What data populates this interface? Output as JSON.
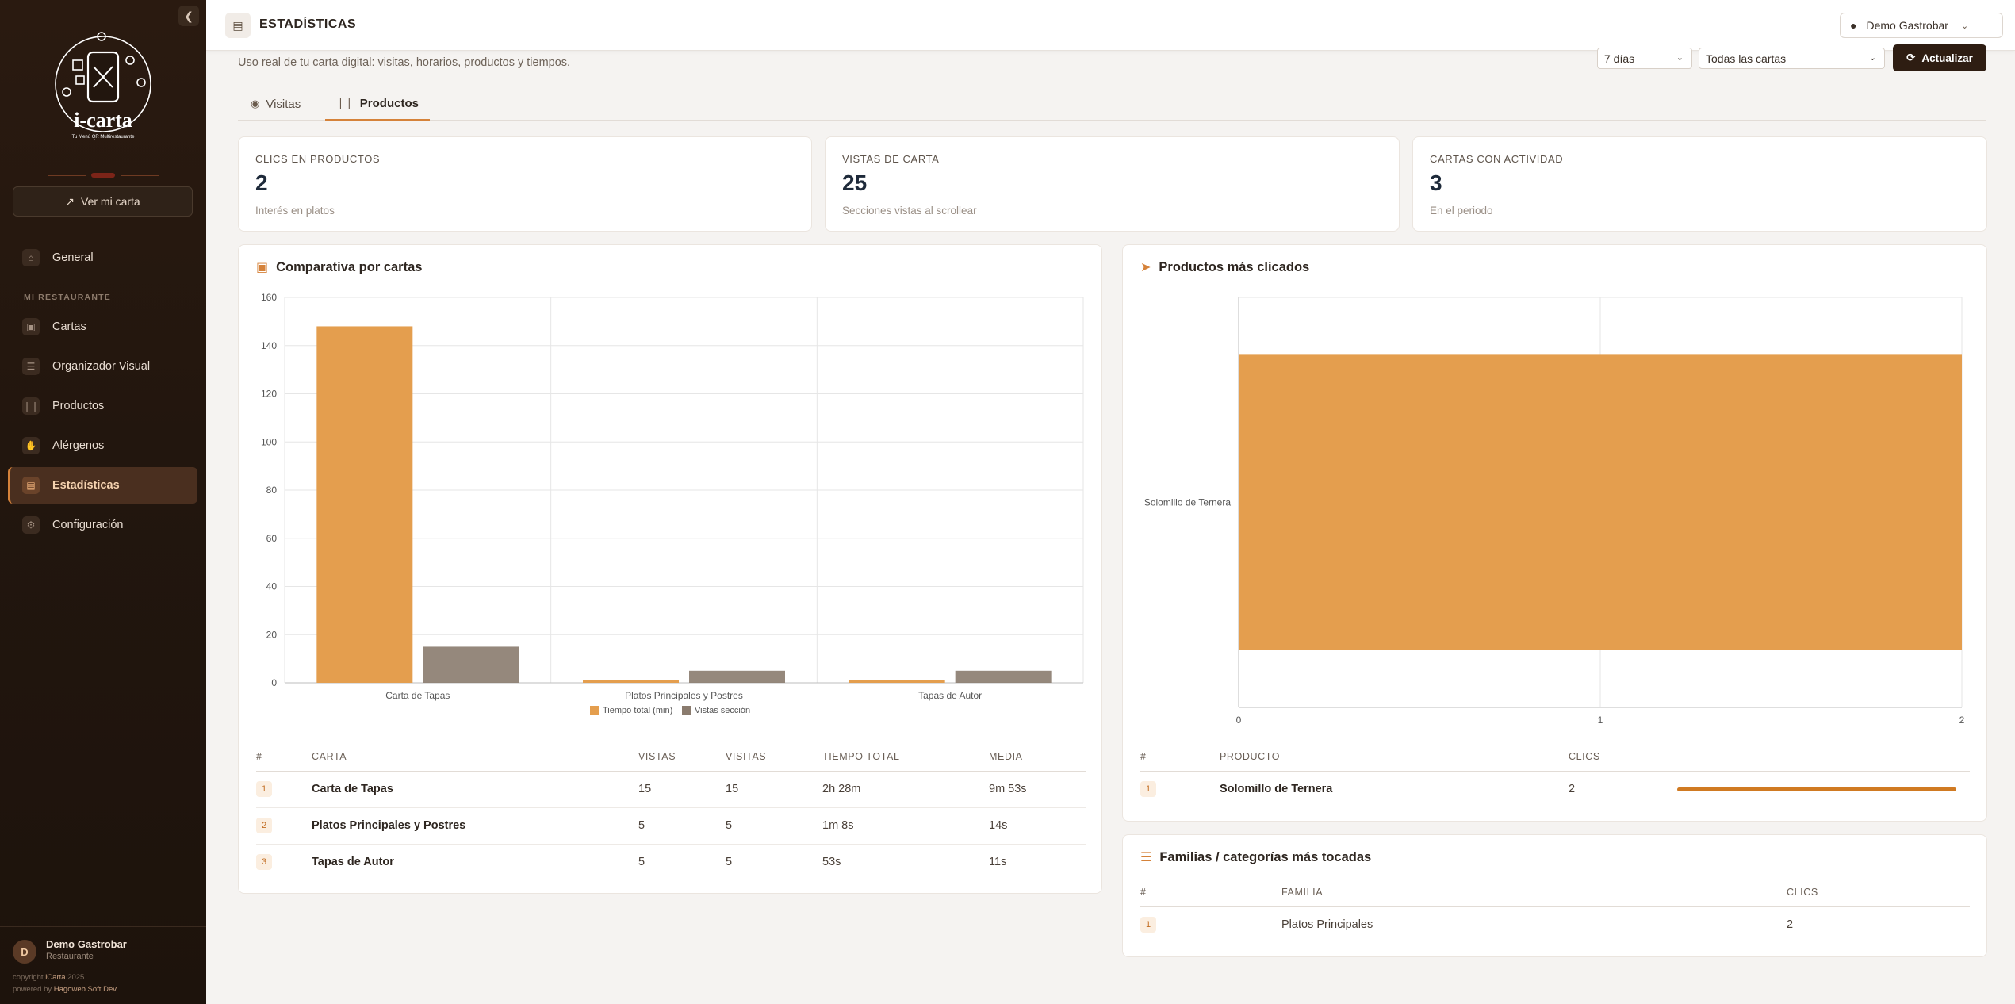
{
  "colors": {
    "accent": "#d5823a",
    "bar_primary": "#e49e4e",
    "bar_secondary": "#8a7b6e",
    "sidebar_bg": "#22160e",
    "button_dark": "#2e1d12"
  },
  "sidebar": {
    "logo_text": "i-carta",
    "logo_tagline": "Tu Menú QR Multirestaurante",
    "view_menu_label": "Ver mi carta",
    "view_menu_icon": "external-link-icon",
    "collapse_icon": "chevron-left-icon",
    "items_top": [
      {
        "label": "General",
        "icon": "home-icon"
      }
    ],
    "section_label": "MI RESTAURANTE",
    "items": [
      {
        "label": "Cartas",
        "icon": "book-icon"
      },
      {
        "label": "Organizador Visual",
        "icon": "layers-icon"
      },
      {
        "label": "Productos",
        "icon": "utensils-icon"
      },
      {
        "label": "Alérgenos",
        "icon": "hand-icon"
      },
      {
        "label": "Estadísticas",
        "icon": "chart-icon",
        "active": true
      },
      {
        "label": "Configuración",
        "icon": "gears-icon"
      }
    ],
    "user": {
      "initial": "D",
      "name": "Demo Gastrobar",
      "role": "Restaurante"
    },
    "copyright_prefix": "copyright ",
    "copyright_brand": "iCarta",
    "copyright_year": " 2025",
    "powered_prefix": "powered by ",
    "powered_brand": "Hagoweb Soft Dev"
  },
  "topbar": {
    "title": "ESTADÍSTICAS",
    "icon": "chart-icon",
    "user_label": "Demo Gastrobar",
    "user_icon": "user-icon"
  },
  "header": {
    "subtitle": "Uso real de tu carta digital: visitas, horarios, productos y tiempos.",
    "period_select": "7 días",
    "carta_select": "Todas las cartas",
    "refresh_label": "Actualizar"
  },
  "tabs": [
    {
      "label": "Visitas",
      "icon": "eye-icon",
      "active": false
    },
    {
      "label": "Productos",
      "icon": "utensils-icon",
      "active": true
    }
  ],
  "stats": [
    {
      "label": "CLICS EN PRODUCTOS",
      "value": "2",
      "hint": "Interés en platos"
    },
    {
      "label": "VISTAS DE CARTA",
      "value": "25",
      "hint": "Secciones vistas al scrollear"
    },
    {
      "label": "CARTAS CON ACTIVIDAD",
      "value": "3",
      "hint": "En el periodo"
    }
  ],
  "comparativa": {
    "title": "Comparativa por cartas",
    "icon": "book-open-icon",
    "columns": [
      "#",
      "CARTA",
      "VISTAS",
      "VISITAS",
      "TIEMPO TOTAL",
      "MEDIA"
    ],
    "rows": [
      {
        "rank": "1",
        "carta": "Carta de Tapas",
        "vistas": "15",
        "visitas": "15",
        "tiempo": "2h 28m",
        "media": "9m 53s"
      },
      {
        "rank": "2",
        "carta": "Platos Principales y Postres",
        "vistas": "5",
        "visitas": "5",
        "tiempo": "1m 8s",
        "media": "14s"
      },
      {
        "rank": "3",
        "carta": "Tapas de Autor",
        "vistas": "5",
        "visitas": "5",
        "tiempo": "53s",
        "media": "11s"
      }
    ]
  },
  "productos": {
    "title": "Productos más clicados",
    "icon": "pointer-icon",
    "columns": [
      "#",
      "PRODUCTO",
      "CLICS"
    ],
    "rows": [
      {
        "rank": "1",
        "producto": "Solomillo de Ternera",
        "clics": "2",
        "share": 1.0
      }
    ]
  },
  "familias": {
    "title": "Familias / categorías más tocadas",
    "icon": "layers-icon",
    "columns": [
      "#",
      "FAMILIA",
      "CLICS"
    ],
    "rows": [
      {
        "rank": "1",
        "familia": "Platos Principales",
        "clics": "2"
      }
    ]
  },
  "chart_data": [
    {
      "type": "bar",
      "title": "Comparativa por cartas",
      "categories": [
        "Carta de Tapas",
        "Platos Principales y Postres",
        "Tapas de Autor"
      ],
      "series": [
        {
          "name": "Tiempo total (min)",
          "values": [
            148,
            1,
            1
          ]
        },
        {
          "name": "Vistas sección",
          "values": [
            15,
            5,
            5
          ]
        }
      ],
      "ylim": [
        0,
        160
      ],
      "yticks": [
        0,
        20,
        40,
        60,
        80,
        100,
        120,
        140,
        160
      ],
      "grid": true,
      "legend": "bottom"
    },
    {
      "type": "bar",
      "orientation": "horizontal",
      "title": "Productos más clicados",
      "categories": [
        "Solomillo de Ternera"
      ],
      "values": [
        2
      ],
      "xlim": [
        0,
        2
      ],
      "xticks": [
        0,
        1,
        2
      ],
      "grid": true
    }
  ]
}
